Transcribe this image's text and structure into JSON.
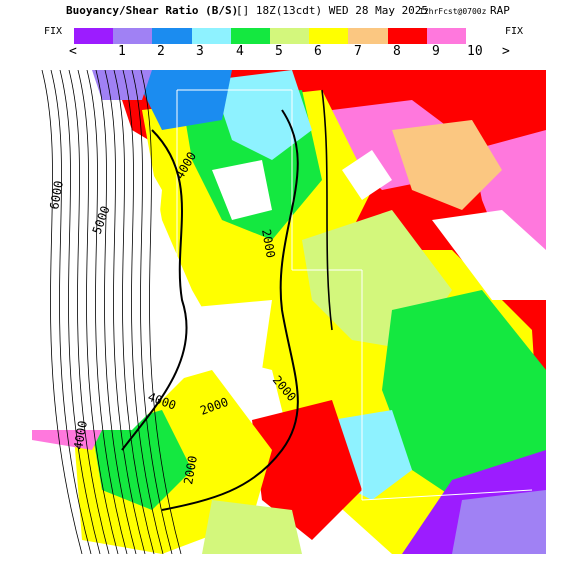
{
  "header": {
    "title_main": "Buoyancy/Shear Ratio (B/S)",
    "title_time": "[] 18Z(13cdt) WED 28 May 2025",
    "title_fcst": "12hrFcst@0700z",
    "title_model": "RAP"
  },
  "colorbar": {
    "fix_left": "FIX",
    "fix_right": "FIX",
    "arrow_left": "<",
    "arrow_right": ">",
    "tick_labels": [
      "1",
      "2",
      "3",
      "4",
      "5",
      "6",
      "7",
      "8",
      "9",
      "10"
    ],
    "colors": [
      "#9c1cff",
      "#a081f4",
      "#1b8cf0",
      "#8ef2ff",
      "#14e840",
      "#d3f77c",
      "#ffff00",
      "#fbc781",
      "#ff0000",
      "#ff78dd"
    ]
  },
  "map": {
    "contour_labels": [
      "6000",
      "5000",
      "4000",
      "2000",
      "2000",
      "2000",
      "4000",
      "2000",
      "4000"
    ]
  }
}
